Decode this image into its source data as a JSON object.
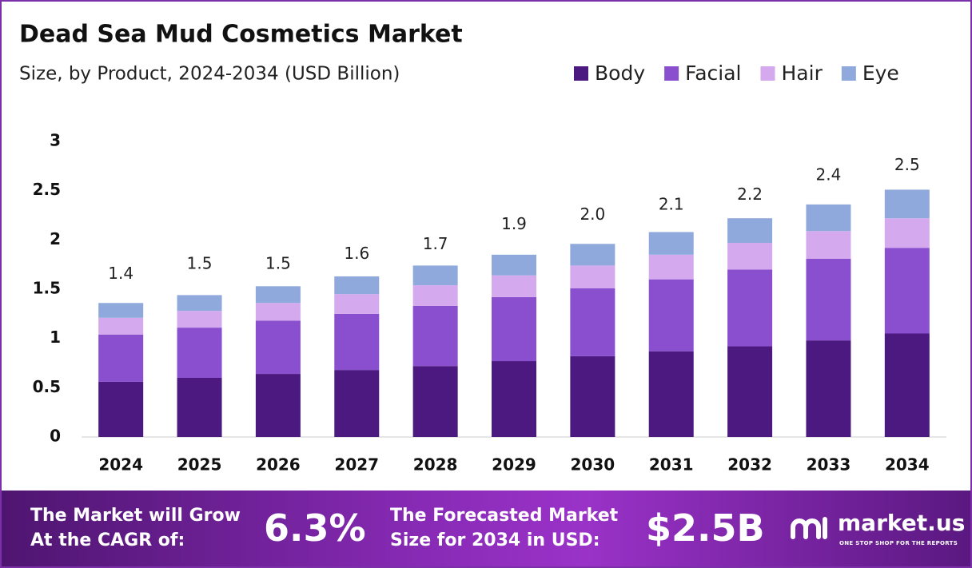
{
  "chart_data": {
    "type": "stacked-bar",
    "title": "Dead Sea Mud Cosmetics Market",
    "subtitle": "Size, by Product, 2024-2034 (USD Billion)",
    "categories": [
      "2024",
      "2025",
      "2026",
      "2027",
      "2028",
      "2029",
      "2030",
      "2031",
      "2032",
      "2033",
      "2034"
    ],
    "series": [
      {
        "name": "Body",
        "color": "#4b197f",
        "values": [
          0.56,
          0.6,
          0.64,
          0.68,
          0.72,
          0.77,
          0.82,
          0.87,
          0.92,
          0.98,
          1.05
        ]
      },
      {
        "name": "Facial",
        "color": "#8a4fcf",
        "values": [
          0.48,
          0.51,
          0.54,
          0.57,
          0.61,
          0.65,
          0.69,
          0.73,
          0.78,
          0.83,
          0.87
        ]
      },
      {
        "name": "Hair",
        "color": "#d4a9ee",
        "values": [
          0.17,
          0.17,
          0.18,
          0.2,
          0.21,
          0.22,
          0.23,
          0.25,
          0.27,
          0.28,
          0.3
        ]
      },
      {
        "name": "Eye",
        "color": "#8fa9dc",
        "values": [
          0.15,
          0.16,
          0.17,
          0.18,
          0.2,
          0.21,
          0.22,
          0.23,
          0.25,
          0.27,
          0.29
        ]
      }
    ],
    "totals": {
      "values": [
        1.4,
        1.5,
        1.5,
        1.6,
        1.7,
        1.9,
        2,
        2.1,
        2.2,
        2.4,
        2.5
      ],
      "value_labels": [
        "1.4",
        "1.5",
        "1.5",
        "1.6",
        "1.7",
        "1.9",
        "2.0",
        "2.1",
        "2.2",
        "2.4",
        "2.5"
      ]
    },
    "ylim": [
      0,
      3
    ],
    "yticks": [
      0,
      0.5,
      1,
      1.5,
      2,
      2.5,
      3
    ],
    "grid": false,
    "legend": "top-right"
  },
  "footer": {
    "cagr_text": [
      "The Market will Grow",
      "At the CAGR of:"
    ],
    "cagr_value": "6.3%",
    "forecast_text": [
      "The Forecasted Market",
      "Size for 2034 in USD:"
    ],
    "forecast_value": "$2.5B",
    "brand": "market.us",
    "tagline": "ONE STOP SHOP FOR THE REPORTS"
  }
}
